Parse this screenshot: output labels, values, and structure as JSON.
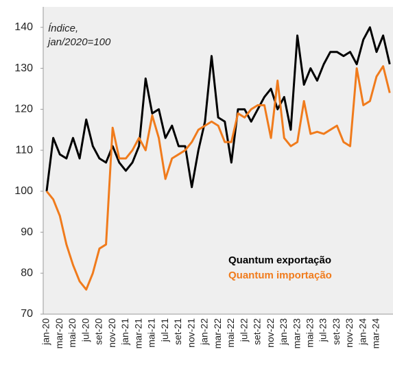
{
  "chart_data": {
    "type": "line",
    "annotation": [
      "Índice,",
      "jan/2020=100"
    ],
    "categories": [
      "jan-20",
      null,
      "mar-20",
      null,
      "mai-20",
      null,
      "jul-20",
      null,
      "set-20",
      null,
      "nov-20",
      null,
      "jan-21",
      null,
      "mar-21",
      null,
      "mai-21",
      null,
      "jul-21",
      null,
      "set-21",
      null,
      "nov-21",
      null,
      "jan-22",
      null,
      "mar-22",
      null,
      "mai-22",
      null,
      "jul-22",
      null,
      "set-22",
      null,
      "nov-22",
      null,
      "jan-23",
      null,
      "mar-23",
      null,
      "mai-23",
      null,
      "jul-23",
      null,
      "set-23",
      null,
      "nov-23",
      null,
      "jan-24",
      null,
      "mar-24",
      null,
      null
    ],
    "series": [
      {
        "name": "Quantum exportação",
        "color": "#000000",
        "values": [
          100,
          113,
          109,
          108,
          113,
          108,
          117.5,
          111,
          108,
          107,
          111,
          107,
          105,
          107,
          111,
          127.5,
          119,
          120,
          113,
          116,
          111,
          111,
          101,
          110,
          117,
          133,
          118,
          117,
          107,
          120,
          120,
          117,
          120,
          123,
          125,
          120,
          123,
          115,
          138,
          126,
          130,
          127,
          131,
          134,
          134,
          133,
          134,
          131,
          137,
          140,
          134,
          138,
          131
        ]
      },
      {
        "name": "Quantum importação",
        "color": "#f07b1c",
        "values": [
          100,
          98,
          94,
          87,
          82,
          78,
          76,
          80,
          86,
          87,
          115.5,
          108,
          108,
          110,
          113,
          110,
          118.5,
          113,
          103,
          108,
          109,
          110,
          112,
          115,
          116,
          117,
          116,
          112,
          112,
          119,
          118,
          120,
          121,
          121,
          113,
          127,
          113,
          111,
          112,
          122,
          114,
          114.5,
          114,
          115,
          116,
          112,
          111,
          130,
          121,
          122,
          128,
          130.5,
          124
        ]
      }
    ],
    "ylim": [
      70,
      145
    ],
    "yticks": [
      70,
      80,
      90,
      100,
      110,
      120,
      130,
      140
    ],
    "legend": "lower right"
  }
}
